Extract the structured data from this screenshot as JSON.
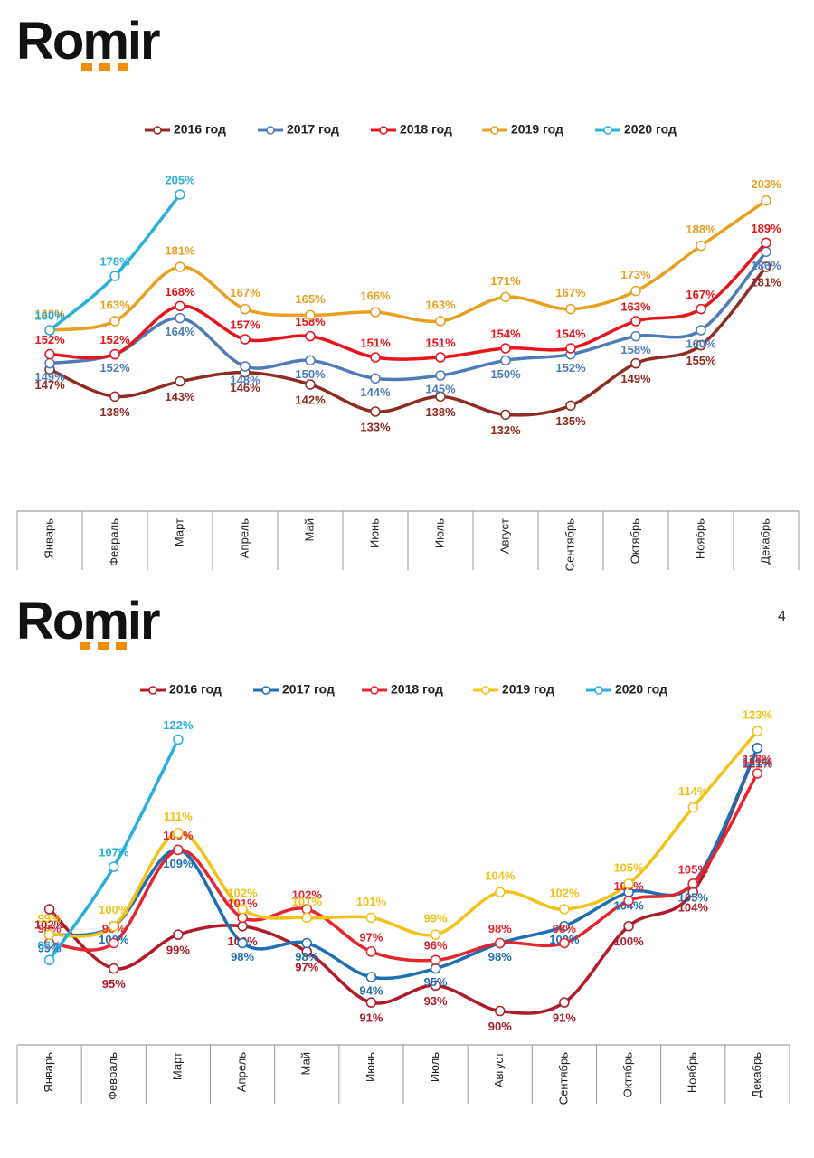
{
  "logos": [
    "Romir",
    "Romir"
  ],
  "page_number": 4,
  "chart_data": [
    {
      "type": "line",
      "categories": [
        "Январь",
        "Февраль",
        "Март",
        "Апрель",
        "Май",
        "Июнь",
        "Июль",
        "Август",
        "Сентябрь",
        "Октябрь",
        "Ноябрь",
        "Декабрь"
      ],
      "ylim": [
        100,
        220
      ],
      "series": [
        {
          "name": "2016 год",
          "color": "#8e2b22",
          "values": [
            147,
            138,
            143,
            146,
            142,
            133,
            138,
            132,
            135,
            149,
            155,
            181
          ],
          "value_labels": [
            "147%",
            "138%",
            "143%",
            "146%",
            "142%",
            "133%",
            "138%",
            "132%",
            "135%",
            "149%",
            "155%",
            "181%"
          ]
        },
        {
          "name": "2017 год",
          "color": "#4f7cb8",
          "values": [
            149,
            152,
            164,
            148,
            150,
            144,
            145,
            150,
            152,
            158,
            160,
            186
          ],
          "value_labels": [
            "149%",
            "152%",
            "164%",
            "148%",
            "150%",
            "144%",
            "145%",
            "150%",
            "152%",
            "158%",
            "160%",
            "186%"
          ]
        },
        {
          "name": "2018 год",
          "color": "#e8141c",
          "values": [
            152,
            152,
            168,
            157,
            158,
            151,
            151,
            154,
            154,
            163,
            167,
            189
          ],
          "value_labels": [
            "152%",
            "152%",
            "168%",
            "157%",
            "158%",
            "151%",
            "151%",
            "154%",
            "154%",
            "163%",
            "167%",
            "189%"
          ]
        },
        {
          "name": "2019 год",
          "color": "#e8a020",
          "values": [
            160,
            163,
            181,
            167,
            165,
            166,
            163,
            171,
            167,
            173,
            188,
            203
          ],
          "value_labels": [
            "160%",
            "163%",
            "181%",
            "167%",
            "165%",
            "166%",
            "163%",
            "171%",
            "167%",
            "173%",
            "188%",
            "203%"
          ]
        },
        {
          "name": "2020 год",
          "color": "#29b0d8",
          "values": [
            160,
            178,
            205,
            null,
            null,
            null,
            null,
            null,
            null,
            null,
            null,
            null
          ],
          "value_labels": [
            "160%",
            "178%",
            "205%",
            null,
            null,
            null,
            null,
            null,
            null,
            null,
            null,
            null
          ]
        }
      ]
    },
    {
      "type": "line",
      "categories": [
        "Январь",
        "Февраль",
        "Март",
        "Апрель",
        "Май",
        "Июнь",
        "Июль",
        "Август",
        "Сентябрь",
        "Октябрь",
        "Ноябрь",
        "Декабрь"
      ],
      "ylim": [
        86,
        126
      ],
      "series": [
        {
          "name": "2016 год",
          "color": "#b01b2a",
          "values": [
            102,
            95,
            99,
            100,
            97,
            91,
            93,
            90,
            91,
            100,
            104,
            121
          ],
          "value_labels": [
            "102%",
            "95%",
            "99%",
            "100%",
            "97%",
            "91%",
            "93%",
            "90%",
            "91%",
            "100%",
            "104%",
            "121%"
          ]
        },
        {
          "name": "2017 год",
          "color": "#1f6fb5",
          "values": [
            99,
            100,
            109,
            98,
            98,
            94,
            95,
            98,
            100,
            104,
            105,
            121
          ],
          "value_labels": [
            "99%",
            "100%",
            "109%",
            "98%",
            "98%",
            "94%",
            "95%",
            "98%",
            "100%",
            "104%",
            "105%",
            "121%"
          ]
        },
        {
          "name": "2018 год",
          "color": "#e5252f",
          "values": [
            98,
            98,
            109,
            101,
            102,
            97,
            96,
            98,
            98,
            103,
            105,
            118
          ],
          "value_labels": [
            "98%",
            "98%",
            "109%",
            "101%",
            "102%",
            "97%",
            "96%",
            "98%",
            "98%",
            "103%",
            "105%",
            "118%"
          ]
        },
        {
          "name": "2019 год",
          "color": "#f2c218",
          "values": [
            99,
            100,
            111,
            102,
            101,
            101,
            99,
            104,
            102,
            105,
            114,
            123
          ],
          "value_labels": [
            "99%",
            "100%",
            "111%",
            "102%",
            "101%",
            "101%",
            "99%",
            "104%",
            "102%",
            "105%",
            "114%",
            "123%"
          ]
        },
        {
          "name": "2020 год",
          "color": "#2aaee0",
          "values": [
            96,
            107,
            122,
            null,
            null,
            null,
            null,
            null,
            null,
            null,
            null,
            null
          ],
          "value_labels": [
            "96%",
            "107%",
            "122%",
            null,
            null,
            null,
            null,
            null,
            null,
            null,
            null,
            null
          ]
        }
      ]
    }
  ]
}
